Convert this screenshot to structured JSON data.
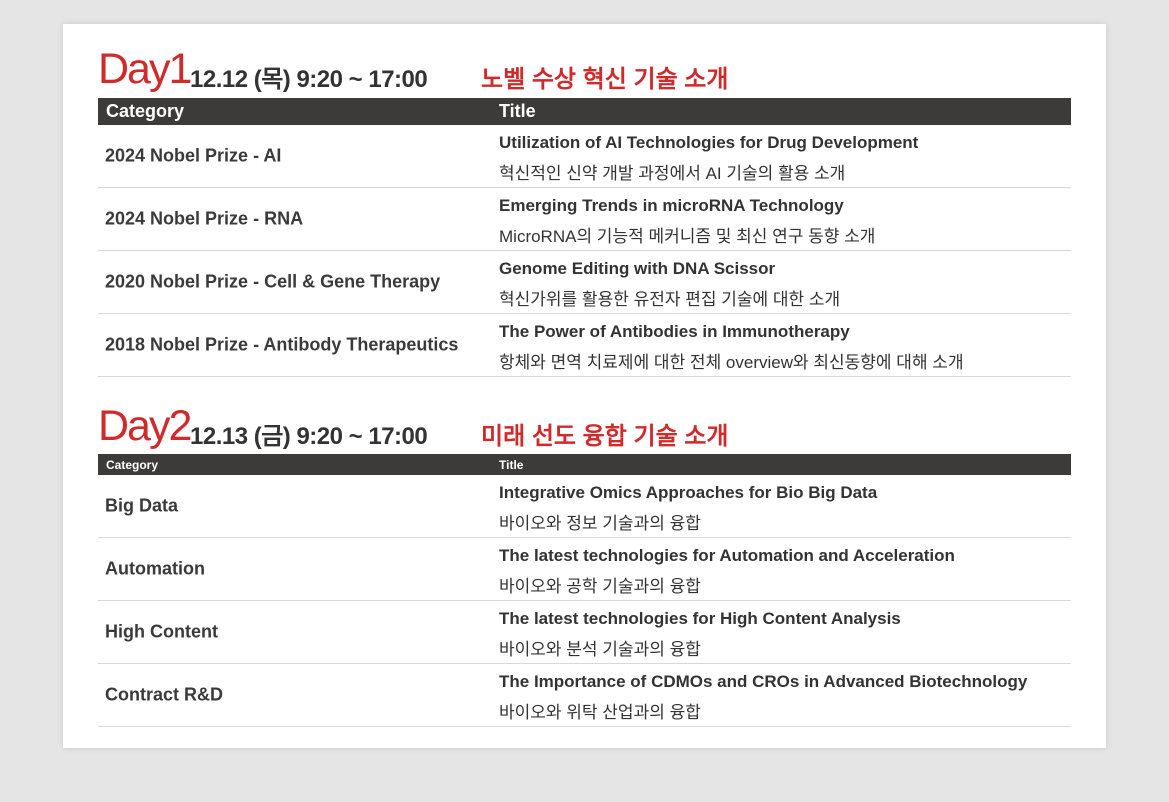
{
  "days": [
    {
      "day": "Day1",
      "date": "12.12 (목) 9:20 ~ 17:00",
      "theme": "노벨 수상 혁신 기술 소개",
      "columns": [
        "Category",
        "Title"
      ],
      "rows": [
        {
          "category": "2024 Nobel Prize - AI",
          "title": "Utilization of AI Technologies for Drug Development",
          "subtitle": "혁신적인 신약 개발 과정에서 AI 기술의 활용 소개"
        },
        {
          "category": "2024 Nobel Prize - RNA",
          "title": "Emerging Trends in microRNA Technology",
          "subtitle": "MicroRNA의 기능적 메커니즘 및 최신 연구 동향 소개"
        },
        {
          "category": "2020 Nobel Prize - Cell & Gene Therapy",
          "title": "Genome Editing with DNA Scissor",
          "subtitle": "혁신가위를 활용한 유전자 편집 기술에 대한 소개"
        },
        {
          "category": "2018 Nobel Prize - Antibody Therapeutics",
          "title": " The Power of Antibodies in Immunotherapy",
          "subtitle": "항체와 면역 치료제에 대한 전체 overview와 최신동향에 대해 소개"
        }
      ]
    },
    {
      "day": "Day2",
      "date": "12.13 (금) 9:20 ~ 17:00",
      "theme": "미래 선도 융합 기술 소개",
      "columns": [
        "Category",
        "Title"
      ],
      "rows": [
        {
          "category": "Big Data",
          "title": "Integrative Omics Approaches for Bio Big Data",
          "subtitle": "바이오와 정보 기술과의 융합"
        },
        {
          "category": "Automation",
          "title": "The latest technologies for Automation and Acceleration",
          "subtitle": "바이오와 공학 기술과의 융합"
        },
        {
          "category": "High Content",
          "title": "The latest technologies for High Content Analysis",
          "subtitle": "바이오와 분석 기술과의 융합"
        },
        {
          "category": "Contract R&D",
          "title": "The Importance of CDMOs and CROs in Advanced Biotechnology",
          "subtitle": "바이오와 위탁 산업과의 융합"
        }
      ]
    }
  ]
}
